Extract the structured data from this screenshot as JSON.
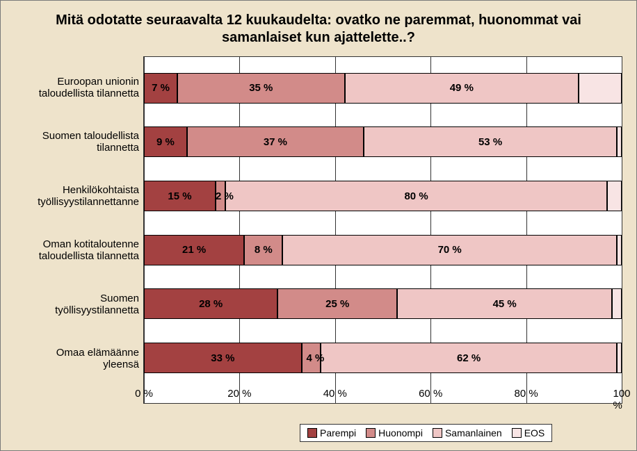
{
  "chart": {
    "type": "stacked-bar-horizontal",
    "title": "Mitä odotatte seuraavalta 12 kuukaudelta: ovatko ne paremmat, huonommat vai samanlaiset kun ajattelette..?",
    "background_color": "#eee3cb",
    "plot_background": "#ffffff",
    "grid_color": "#333333",
    "title_fontsize": 20,
    "label_fontsize": 15,
    "datalabel_fontsize": 15,
    "xlim": [
      0,
      100
    ],
    "xtick_step": 20,
    "xticks": [
      "0 %",
      "20 %",
      "40 %",
      "60 %",
      "80 %",
      "100 %"
    ],
    "xtick_positions": [
      0,
      20,
      40,
      60,
      80,
      100
    ],
    "series": [
      {
        "key": "parempi",
        "label": "Parempi",
        "color": "#a34141"
      },
      {
        "key": "huonompi",
        "label": "Huonompi",
        "color": "#d28b89"
      },
      {
        "key": "samanlainen",
        "label": "Samanlainen",
        "color": "#efc6c5"
      },
      {
        "key": "eos",
        "label": "EOS",
        "color": "#f8e4e4"
      }
    ],
    "categories": [
      {
        "label": "Euroopan unionin\ntaloudellista tilannetta",
        "values": {
          "parempi": 7,
          "huonompi": 35,
          "samanlainen": 49,
          "eos": 9
        },
        "show": {
          "parempi": "7 %",
          "huonompi": "35 %",
          "samanlainen": "49 %",
          "eos": ""
        }
      },
      {
        "label": "Suomen taloudellista\ntilannetta",
        "values": {
          "parempi": 9,
          "huonompi": 37,
          "samanlainen": 53,
          "eos": 1
        },
        "show": {
          "parempi": "9 %",
          "huonompi": "37 %",
          "samanlainen": "53 %",
          "eos": ""
        }
      },
      {
        "label": "Henkilökohtaista\ntyöllisyystilannettanne",
        "values": {
          "parempi": 15,
          "huonompi": 2,
          "samanlainen": 80,
          "eos": 3
        },
        "show": {
          "parempi": "15 %",
          "huonompi": "2 %",
          "samanlainen": "80 %",
          "eos": ""
        }
      },
      {
        "label": "Oman kotitaloutenne\ntaloudellista tilannetta",
        "values": {
          "parempi": 21,
          "huonompi": 8,
          "samanlainen": 70,
          "eos": 1
        },
        "show": {
          "parempi": "21 %",
          "huonompi": "8 %",
          "samanlainen": "70 %",
          "eos": ""
        }
      },
      {
        "label": "Suomen\ntyöllisyystilannetta",
        "values": {
          "parempi": 28,
          "huonompi": 25,
          "samanlainen": 45,
          "eos": 2
        },
        "show": {
          "parempi": "28 %",
          "huonompi": "25 %",
          "samanlainen": "45 %",
          "eos": ""
        }
      },
      {
        "label": "Omaa elämäänne\nyleensä",
        "values": {
          "parempi": 33,
          "huonompi": 4,
          "samanlainen": 62,
          "eos": 1
        },
        "show": {
          "parempi": "33 %",
          "huonompi": "4 %",
          "samanlainen": "62 %",
          "eos": ""
        }
      }
    ]
  }
}
